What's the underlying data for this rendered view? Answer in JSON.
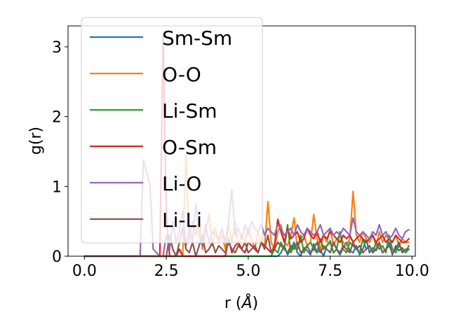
{
  "chart_data": {
    "type": "line",
    "xlabel": "r (",
    "xlabel_unit": "Å",
    "xlabel_close": ")",
    "ylabel": "g(r)",
    "xlim": [
      -0.5,
      10.1
    ],
    "ylim": [
      0,
      3.3
    ],
    "xticks": [
      0.0,
      2.5,
      5.0,
      7.5,
      10.0
    ],
    "xtick_labels": [
      "0.0",
      "2.5",
      "5.0",
      "7.5",
      "10.0"
    ],
    "yticks": [
      0,
      1,
      2,
      3
    ],
    "ytick_labels": [
      "0",
      "1",
      "2",
      "3"
    ],
    "grid": false,
    "legend_position": "top-left",
    "x": [
      0.0,
      0.1,
      0.2,
      0.3,
      0.4,
      0.5,
      0.6,
      0.7,
      0.8,
      0.9,
      1.0,
      1.1,
      1.2,
      1.3,
      1.4,
      1.5,
      1.6,
      1.7,
      1.8,
      1.9,
      2.0,
      2.1,
      2.2,
      2.3,
      2.4,
      2.5,
      2.6,
      2.7,
      2.8,
      2.9,
      3.0,
      3.1,
      3.2,
      3.3,
      3.4,
      3.5,
      3.6,
      3.7,
      3.8,
      3.9,
      4.0,
      4.1,
      4.2,
      4.3,
      4.4,
      4.5,
      4.6,
      4.7,
      4.8,
      4.9,
      5.0,
      5.1,
      5.2,
      5.3,
      5.4,
      5.5,
      5.6,
      5.7,
      5.8,
      5.9,
      6.0,
      6.1,
      6.2,
      6.3,
      6.4,
      6.5,
      6.6,
      6.7,
      6.8,
      6.9,
      7.0,
      7.1,
      7.2,
      7.3,
      7.4,
      7.5,
      7.6,
      7.7,
      7.8,
      7.9,
      8.0,
      8.1,
      8.2,
      8.3,
      8.4,
      8.5,
      8.6,
      8.7,
      8.8,
      8.9,
      9.0,
      9.1,
      9.2,
      9.3,
      9.4,
      9.5,
      9.6,
      9.7,
      9.8,
      9.9
    ],
    "series": [
      {
        "name": "Sm-Sm",
        "color": "#1f77b4",
        "values": [
          0,
          0,
          0,
          0,
          0,
          0,
          0,
          0,
          0,
          0,
          0,
          0,
          0,
          0,
          0,
          0,
          0,
          0,
          0,
          0,
          0,
          0,
          0,
          0,
          0,
          0,
          0,
          0,
          0,
          0,
          0,
          0,
          0,
          0,
          0,
          0,
          0,
          0,
          0,
          0,
          0,
          0,
          0,
          0,
          0,
          0,
          0,
          0,
          0,
          0,
          0,
          0,
          0,
          0,
          0,
          0,
          0,
          0,
          0,
          0,
          0.05,
          0.15,
          0.02,
          0.1,
          0.2,
          0.05,
          0,
          0.12,
          0.08,
          0.02,
          0.18,
          0.05,
          0.1,
          0,
          0.15,
          0.22,
          0.05,
          0.1,
          0.02,
          0.12,
          0.2,
          0.08,
          0.05,
          0.15,
          0.02,
          0.1,
          0.25,
          0.05,
          0.12,
          0.08,
          0.18,
          0.05,
          0.1,
          0.2,
          0.02,
          0.15,
          0.08,
          0.12,
          0.05,
          0.1
        ]
      },
      {
        "name": "O-O",
        "color": "#ff7f0e",
        "values": [
          0,
          0,
          0,
          0,
          0,
          0,
          0,
          0,
          0,
          0,
          0,
          0,
          0,
          0,
          0,
          0,
          0,
          0,
          0,
          0,
          0,
          0,
          0,
          0,
          0,
          0,
          0,
          0,
          0,
          0,
          0,
          1.45,
          0.2,
          0.5,
          0.3,
          0.55,
          0.1,
          0.35,
          0.6,
          0.15,
          0.4,
          0.2,
          0.3,
          0.1,
          0.45,
          0.2,
          0.5,
          0.15,
          0.3,
          0.2,
          0.4,
          0.25,
          0.1,
          0.35,
          0.2,
          0.15,
          0.78,
          0.2,
          0.1,
          0.35,
          0.45,
          0.2,
          0.15,
          0.3,
          0.55,
          0.1,
          0.25,
          0.3,
          0.15,
          0.2,
          0.6,
          0.25,
          0.1,
          0.3,
          0.2,
          0.4,
          0.15,
          0.25,
          0.3,
          0.2,
          0.15,
          0.25,
          0.93,
          0.3,
          0.2,
          0.35,
          0.25,
          0.2,
          0.3,
          0.15,
          0.35,
          0.2,
          0.3,
          0.25,
          0.2,
          0.3,
          0.15,
          0.25,
          0.2,
          0.2
        ]
      },
      {
        "name": "Li-Sm",
        "color": "#2ca02c",
        "values": [
          0,
          0,
          0,
          0,
          0,
          0,
          0,
          0,
          0,
          0,
          0,
          0,
          0,
          0,
          0,
          0,
          0,
          0,
          0,
          0,
          0,
          0,
          0,
          0,
          0,
          0,
          0,
          0,
          0,
          0,
          0,
          0,
          0,
          0,
          0,
          0,
          0,
          0,
          0,
          0,
          0,
          0,
          0,
          0,
          0,
          0,
          0,
          0,
          0,
          0,
          0,
          0,
          0,
          0,
          0,
          0,
          0,
          0,
          0.1,
          0.05,
          0.2,
          0.1,
          0.45,
          0.05,
          0.15,
          0.1,
          0.3,
          0.05,
          0.15,
          0.2,
          0.1,
          0.05,
          0.25,
          0.1,
          0.15,
          0.2,
          0.05,
          0.1,
          0.35,
          0.1,
          0.05,
          0.2,
          0.15,
          0.1,
          0.05,
          0.25,
          0.1,
          0.15,
          0.05,
          0.2,
          0.1,
          0.15,
          0.05,
          0.3,
          0.1,
          0.05,
          0.15,
          0.1,
          0.05,
          0.15
        ]
      },
      {
        "name": "O-Sm",
        "color": "#d62728",
        "values": [
          0,
          0,
          0,
          0,
          0,
          0,
          0,
          0,
          0,
          0,
          0,
          0,
          0,
          0,
          0,
          0,
          0,
          0,
          0,
          0,
          0,
          0,
          0,
          0,
          3.15,
          0.6,
          0,
          0,
          0,
          0.1,
          0,
          0,
          0,
          0,
          0,
          0,
          0,
          0,
          0,
          0,
          0,
          0,
          0,
          0,
          0.25,
          0.05,
          0.15,
          0.2,
          0.1,
          0.05,
          0.2,
          0.15,
          0.1,
          0.05,
          0.2,
          0.15,
          0.1,
          0.05,
          0.15,
          0.53,
          0.35,
          0.2,
          0.4,
          0.25,
          0.3,
          0.35,
          0.2,
          0.25,
          0.4,
          0.3,
          0.25,
          0.35,
          0.2,
          0.3,
          0.25,
          0.35,
          0.3,
          0.25,
          0.2,
          0.3,
          0.25,
          0.3,
          0.2,
          0.25,
          0.3,
          0.25,
          0.2,
          0.25,
          0.3,
          0.2,
          0.25,
          0.3,
          0.2,
          0.25,
          0.2,
          0.3,
          0.25,
          0.2,
          0.2,
          0.25
        ]
      },
      {
        "name": "Li-O",
        "color": "#9467bd",
        "values": [
          0,
          0,
          0,
          0,
          0,
          0,
          0,
          0,
          0,
          0,
          0,
          0,
          0,
          0,
          0,
          0,
          0,
          0,
          1.38,
          1.2,
          1.02,
          0.1,
          0.05,
          0,
          0,
          0.3,
          0.1,
          0.5,
          0.2,
          0.35,
          0.65,
          0.15,
          0.4,
          0.2,
          0.75,
          0.3,
          0.15,
          0.45,
          0.2,
          0.35,
          0.3,
          0.25,
          0.4,
          0.2,
          0.5,
          0.95,
          0.3,
          0.4,
          0.25,
          0.45,
          0.3,
          0.5,
          0.4,
          0.35,
          0.45,
          0.3,
          0.4,
          0.35,
          0.3,
          0.45,
          0.4,
          0.3,
          0.35,
          0.4,
          0.3,
          0.45,
          0.35,
          0.3,
          0.4,
          0.35,
          0.3,
          0.35,
          0.45,
          0.3,
          0.35,
          0.4,
          0.3,
          0.35,
          0.3,
          0.4,
          0.35,
          0.3,
          0.55,
          0.35,
          0.3,
          0.35,
          0.3,
          0.25,
          0.35,
          0.3,
          0.45,
          0.3,
          0.35,
          0.25,
          0.3,
          0.4,
          0.3,
          0.25,
          0.35,
          0.38
        ]
      },
      {
        "name": "Li-Li",
        "color": "#8c564b",
        "values": [
          0,
          0,
          0,
          0,
          0,
          0,
          0,
          0,
          0,
          0,
          0,
          0,
          0,
          0,
          0,
          0,
          0,
          0,
          0,
          0,
          0,
          0,
          0,
          0,
          0,
          0,
          0.3,
          0.1,
          0,
          0.2,
          0.4,
          0.1,
          0.05,
          0.2,
          0,
          0.15,
          0.3,
          0.05,
          0.1,
          0.2,
          0.05,
          0.15,
          0.1,
          0.05,
          0.2,
          0.1,
          0.05,
          0.15,
          0.1,
          0.2,
          0.05,
          0.1,
          0.15,
          0.05,
          0.2,
          0.1,
          0.3,
          0.05,
          0.1,
          0.2,
          0.15,
          0.1,
          0.05,
          0.15,
          0.1,
          0.2,
          0.05,
          0.1,
          0.15,
          0.05,
          0.1,
          0.2,
          0.05,
          0.15,
          0.1,
          0.05,
          0.2,
          0.1,
          0.05,
          0.15,
          0.1,
          0.05,
          0.2,
          0.1,
          0.15,
          0.05,
          0.1,
          0.15,
          0.05,
          0.1,
          0.2,
          0.05,
          0.1,
          0.15,
          0.05,
          0.1,
          0.2,
          0.05,
          0.1,
          0.1
        ]
      }
    ]
  }
}
